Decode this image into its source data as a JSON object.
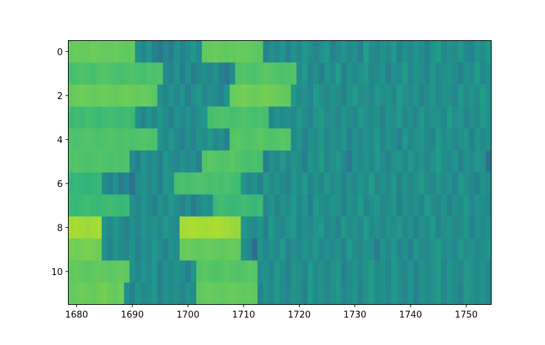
{
  "chart_data": {
    "type": "heatmap",
    "colormap": "viridis",
    "clim": [
      0,
      100
    ],
    "x": [
      1679,
      1680,
      1681,
      1682,
      1683,
      1684,
      1685,
      1686,
      1687,
      1688,
      1689,
      1690,
      1691,
      1692,
      1693,
      1694,
      1695,
      1696,
      1697,
      1698,
      1699,
      1700,
      1701,
      1702,
      1703,
      1704,
      1705,
      1706,
      1707,
      1708,
      1709,
      1710,
      1711,
      1712,
      1713,
      1714,
      1715,
      1716,
      1717,
      1718,
      1719,
      1720,
      1721,
      1722,
      1723,
      1724,
      1725,
      1726,
      1727,
      1728,
      1729,
      1730,
      1731,
      1732,
      1733,
      1734,
      1735,
      1736,
      1737,
      1738,
      1739,
      1740,
      1741,
      1742,
      1743,
      1744,
      1745,
      1746,
      1747,
      1748,
      1749,
      1750,
      1751,
      1752,
      1753,
      1754
    ],
    "y": [
      0,
      1,
      2,
      3,
      4,
      5,
      6,
      7,
      8,
      9,
      10,
      11
    ],
    "xlim": [
      1678.5,
      1754.5
    ],
    "ylim": [
      11.5,
      -0.5
    ],
    "xticks": [
      1680,
      1690,
      1700,
      1710,
      1720,
      1730,
      1740,
      1750
    ],
    "yticks": [
      0,
      2,
      4,
      6,
      8,
      10
    ],
    "values": [
      [
        76,
        77,
        76,
        76,
        78,
        77,
        76,
        76,
        77,
        76,
        75,
        76,
        50,
        46,
        52,
        44,
        40,
        47,
        42,
        51,
        45,
        49,
        53,
        47,
        75,
        76,
        77,
        76,
        75,
        76,
        77,
        76,
        76,
        75,
        74,
        45,
        50,
        48,
        52,
        44,
        51,
        47,
        53,
        49,
        46,
        50,
        54,
        45,
        48,
        52,
        47,
        50,
        44,
        56,
        49,
        46,
        51,
        48,
        53,
        45,
        50,
        47,
        52,
        49,
        44,
        51,
        55,
        46,
        50,
        48,
        53,
        47,
        45,
        52,
        49,
        54
      ],
      [
        70,
        71,
        72,
        71,
        70,
        72,
        73,
        72,
        71,
        70,
        71,
        72,
        71,
        70,
        72,
        71,
        72,
        48,
        45,
        52,
        44,
        50,
        43,
        47,
        49,
        46,
        51,
        44,
        40,
        48,
        72,
        73,
        72,
        71,
        73,
        74,
        73,
        72,
        71,
        72,
        73,
        49,
        53,
        46,
        50,
        44,
        52,
        48,
        55,
        45,
        51,
        47,
        50,
        53,
        46,
        49,
        52,
        44,
        50,
        48,
        54,
        46,
        51,
        49,
        45,
        53,
        47,
        50,
        52,
        48,
        44,
        51,
        49,
        55,
        47,
        50
      ],
      [
        76,
        77,
        78,
        77,
        76,
        77,
        78,
        77,
        76,
        77,
        78,
        77,
        76,
        77,
        76,
        74,
        50,
        46,
        52,
        47,
        51,
        44,
        49,
        53,
        46,
        50,
        48,
        45,
        52,
        77,
        78,
        79,
        78,
        77,
        78,
        79,
        78,
        77,
        76,
        75,
        53,
        48,
        51,
        46,
        55,
        50,
        47,
        52,
        49,
        45,
        51,
        54,
        48,
        50,
        46,
        53,
        49,
        51,
        47,
        55,
        50,
        48,
        52,
        45,
        49,
        53,
        47,
        51,
        50,
        46,
        54,
        48,
        52,
        49,
        55,
        50
      ],
      [
        68,
        69,
        68,
        70,
        69,
        68,
        69,
        70,
        69,
        68,
        69,
        68,
        50,
        45,
        52,
        47,
        53,
        49,
        44,
        51,
        48,
        52,
        46,
        50,
        53,
        70,
        71,
        72,
        71,
        70,
        71,
        72,
        71,
        70,
        71,
        70,
        46,
        52,
        48,
        50,
        47,
        53,
        49,
        45,
        51,
        54,
        48,
        50,
        46,
        52,
        49,
        47,
        53,
        50,
        48,
        51,
        45,
        52,
        49,
        54,
        47,
        50,
        46,
        53,
        48,
        51,
        50,
        47,
        55,
        49,
        52,
        46,
        50,
        48,
        53,
        51
      ],
      [
        72,
        71,
        72,
        73,
        72,
        71,
        72,
        73,
        72,
        71,
        72,
        71,
        72,
        73,
        72,
        71,
        51,
        47,
        53,
        48,
        44,
        50,
        46,
        52,
        49,
        53,
        47,
        50,
        45,
        73,
        74,
        73,
        72,
        73,
        74,
        73,
        72,
        73,
        74,
        73,
        47,
        52,
        44,
        50,
        48,
        54,
        46,
        51,
        49,
        53,
        45,
        50,
        47,
        52,
        48,
        55,
        46,
        51,
        49,
        44,
        53,
        47,
        50,
        52,
        48,
        46,
        54,
        49,
        51,
        47,
        50,
        53,
        45,
        52,
        48,
        50
      ],
      [
        72,
        73,
        72,
        71,
        72,
        73,
        72,
        71,
        72,
        71,
        72,
        48,
        44,
        52,
        47,
        50,
        45,
        53,
        49,
        46,
        51,
        47,
        50,
        44,
        73,
        74,
        73,
        72,
        73,
        74,
        72,
        71,
        70,
        71,
        70,
        42,
        50,
        47,
        53,
        46,
        51,
        48,
        44,
        52,
        49,
        55,
        47,
        50,
        53,
        46,
        40,
        52,
        48,
        51,
        47,
        54,
        49,
        45,
        50,
        52,
        47,
        53,
        48,
        51,
        46,
        50,
        55,
        49,
        47,
        52,
        45,
        51,
        48,
        53,
        50,
        38
      ],
      [
        66,
        67,
        66,
        65,
        66,
        67,
        48,
        44,
        50,
        42,
        46,
        38,
        49,
        52,
        47,
        51,
        45,
        53,
        50,
        70,
        71,
        70,
        71,
        72,
        71,
        70,
        71,
        70,
        71,
        70,
        69,
        52,
        46,
        50,
        44,
        53,
        48,
        51,
        47,
        45,
        52,
        49,
        54,
        47,
        50,
        46,
        53,
        48,
        51,
        44,
        50,
        47,
        52,
        49,
        55,
        46,
        50,
        48,
        53,
        45,
        51,
        47,
        50,
        54,
        49,
        46,
        52,
        48,
        51,
        45,
        53,
        50,
        47,
        44,
        51,
        49
      ],
      [
        68,
        67,
        68,
        69,
        68,
        67,
        68,
        69,
        68,
        67,
        68,
        50,
        46,
        52,
        48,
        44,
        51,
        47,
        53,
        49,
        45,
        50,
        42,
        48,
        52,
        49,
        68,
        69,
        68,
        67,
        68,
        69,
        68,
        67,
        68,
        47,
        52,
        45,
        50,
        48,
        54,
        46,
        51,
        44,
        53,
        49,
        47,
        52,
        50,
        45,
        51,
        48,
        55,
        46,
        50,
        53,
        47,
        49,
        52,
        44,
        51,
        48,
        50,
        46,
        54,
        49,
        47,
        52,
        45,
        50,
        48,
        53,
        46,
        51,
        49,
        47
      ],
      [
        86,
        87,
        86,
        85,
        86,
        87,
        52,
        47,
        53,
        48,
        44,
        50,
        46,
        52,
        49,
        51,
        47,
        53,
        50,
        48,
        86,
        87,
        88,
        87,
        86,
        87,
        88,
        87,
        86,
        85,
        84,
        53,
        50,
        48,
        52,
        45,
        55,
        49,
        47,
        51,
        53,
        46,
        50,
        48,
        52,
        54,
        47,
        50,
        45,
        53,
        49,
        51,
        47,
        55,
        48,
        50,
        46,
        52,
        49,
        53,
        47,
        50,
        44,
        51,
        48,
        54,
        46,
        50,
        52,
        47,
        49,
        53,
        45,
        51,
        48,
        50
      ],
      [
        79,
        78,
        79,
        80,
        79,
        78,
        50,
        45,
        52,
        48,
        46,
        51,
        44,
        50,
        47,
        53,
        49,
        45,
        51,
        48,
        76,
        77,
        76,
        75,
        76,
        77,
        76,
        75,
        76,
        77,
        76,
        50,
        47,
        36,
        52,
        46,
        51,
        48,
        54,
        45,
        50,
        47,
        52,
        49,
        53,
        46,
        50,
        48,
        51,
        45,
        54,
        49,
        47,
        52,
        50,
        42,
        51,
        48,
        53,
        46,
        50,
        44,
        52,
        49,
        47,
        51,
        55,
        48,
        50,
        46,
        53,
        49,
        51,
        47,
        50,
        52
      ],
      [
        75,
        76,
        75,
        74,
        75,
        76,
        75,
        74,
        75,
        76,
        75,
        50,
        46,
        52,
        48,
        53,
        45,
        50,
        47,
        51,
        49,
        44,
        52,
        73,
        74,
        73,
        72,
        73,
        74,
        73,
        72,
        73,
        74,
        73,
        48,
        51,
        46,
        53,
        49,
        45,
        52,
        50,
        47,
        54,
        48,
        51,
        46,
        50,
        53,
        45,
        49,
        52,
        47,
        51,
        55,
        48,
        50,
        46,
        53,
        49,
        47,
        52,
        45,
        51,
        48,
        50,
        54,
        46,
        52,
        49,
        47,
        53,
        50,
        48,
        51,
        46
      ],
      [
        76,
        77,
        78,
        77,
        76,
        78,
        79,
        77,
        76,
        78,
        50,
        44,
        52,
        47,
        49,
        53,
        45,
        51,
        48,
        50,
        46,
        52,
        49,
        75,
        76,
        77,
        76,
        75,
        76,
        77,
        76,
        75,
        76,
        75,
        44,
        51,
        47,
        53,
        49,
        46,
        52,
        50,
        45,
        54,
        48,
        51,
        47,
        50,
        53,
        46,
        49,
        52,
        45,
        51,
        55,
        48,
        50,
        47,
        53,
        49,
        46,
        52,
        44,
        51,
        48,
        50,
        54,
        47,
        52,
        49,
        45,
        53,
        50,
        48,
        51,
        47
      ]
    ]
  }
}
